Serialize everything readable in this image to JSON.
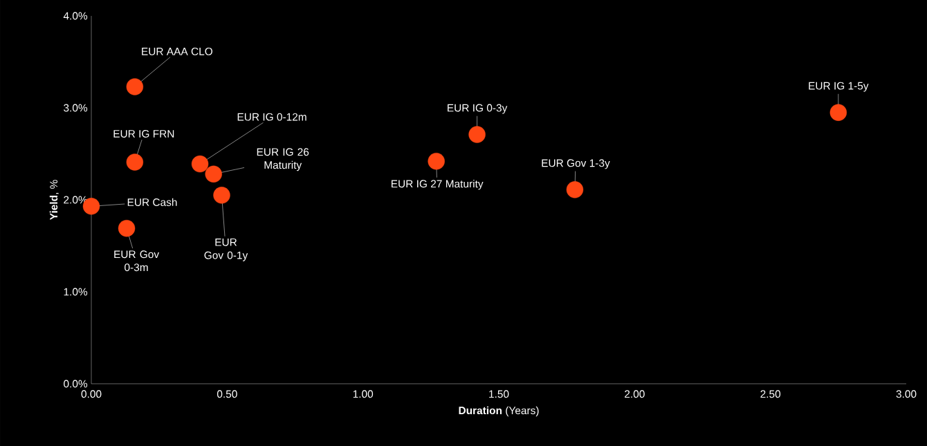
{
  "chart_data": {
    "type": "scatter",
    "xlabel": "**Duration** (Years)",
    "ylabel": "**Yield**, %",
    "xlim": [
      0,
      3
    ],
    "ylim": [
      0,
      4
    ],
    "xticks": [
      {
        "value": 0,
        "label": "0.00"
      },
      {
        "value": 0.5,
        "label": "0.50"
      },
      {
        "value": 1,
        "label": "1.00"
      },
      {
        "value": 1.5,
        "label": "1.50"
      },
      {
        "value": 2,
        "label": "2.00"
      },
      {
        "value": 2.5,
        "label": "2.50"
      },
      {
        "value": 3,
        "label": "3.00"
      }
    ],
    "yticks": [
      {
        "value": 0,
        "label": "0.0%"
      },
      {
        "value": 1,
        "label": "1.0%"
      },
      {
        "value": 2,
        "label": "2.0%"
      },
      {
        "value": 3,
        "label": "3.0%"
      },
      {
        "value": 4,
        "label": "4.0%"
      }
    ],
    "series": [
      {
        "color": "#ff4713",
        "x": [
          0,
          0.13,
          0.16,
          0.16,
          0.4,
          0.45,
          0.48,
          1.27,
          1.42,
          1.78,
          2.75
        ],
        "values": [
          1.93,
          1.69,
          3.23,
          2.41,
          2.39,
          2.28,
          2.05,
          2.42,
          2.71,
          2.11,
          2.95
        ]
      }
    ],
    "annotations": [
      {
        "text": "EUR Cash",
        "x": 0,
        "y": 1.93
      },
      {
        "text": "EUR Gov 0-3m",
        "x": 0.13,
        "y": 1.69
      },
      {
        "text": "EUR AAA CLO",
        "x": 0.16,
        "y": 3.23
      },
      {
        "text": "EUR IG FRN",
        "x": 0.16,
        "y": 2.41
      },
      {
        "text": "EUR IG 0-12m",
        "x": 0.4,
        "y": 2.39
      },
      {
        "text": "EUR IG 26 Maturity",
        "x": 0.45,
        "y": 2.28
      },
      {
        "text": "EUR Gov 0-1y",
        "x": 0.48,
        "y": 2.05
      },
      {
        "text": "EUR IG 27 Maturity",
        "x": 1.27,
        "y": 2.42
      },
      {
        "text": "EUR IG 0-3y",
        "x": 1.42,
        "y": 2.71
      },
      {
        "text": "EUR Gov 1-3y",
        "x": 1.78,
        "y": 2.11
      },
      {
        "text": "EUR IG 1-5y",
        "x": 2.75,
        "y": 2.95
      }
    ]
  }
}
